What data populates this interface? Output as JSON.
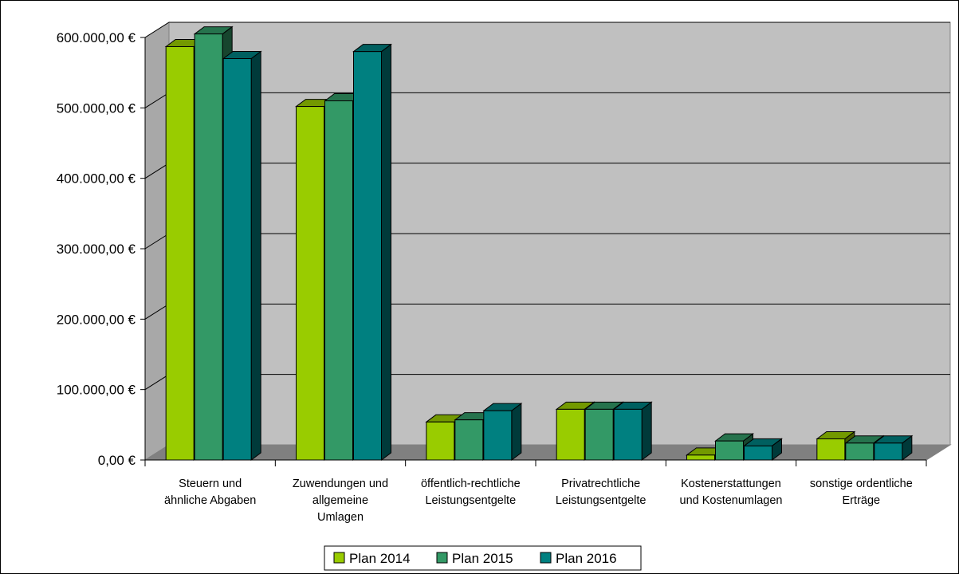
{
  "chart_data": {
    "type": "bar",
    "categories": [
      [
        "Steuern und",
        "ähnliche Abgaben"
      ],
      [
        "Zuwendungen und",
        "allgemeine",
        "Umlagen"
      ],
      [
        "öffentlich-rechtliche",
        "Leistungsentgelte"
      ],
      [
        "Privatrechtliche",
        "Leistungsentgelte"
      ],
      [
        "Kostenerstattungen",
        "und Kostenumlagen"
      ],
      [
        "sonstige ordentliche",
        "Erträge"
      ]
    ],
    "series": [
      {
        "name": "Plan 2014",
        "color": "#99cc00",
        "values": [
          587000,
          502000,
          54000,
          72000,
          7000,
          30000
        ]
      },
      {
        "name": "Plan 2015",
        "color": "#339966",
        "values": [
          605000,
          510000,
          57000,
          72000,
          27000,
          24000
        ]
      },
      {
        "name": "Plan 2016",
        "color": "#008080",
        "values": [
          570000,
          580000,
          70000,
          72000,
          20000,
          24000
        ]
      }
    ],
    "y_ticks": [
      "0,00 €",
      "100.000,00 €",
      "200.000,00 €",
      "300.000,00 €",
      "400.000,00 €",
      "500.000,00 €",
      "600.000,00 €"
    ],
    "ylim": [
      0,
      600000
    ],
    "grid": true,
    "legend_position": "bottom",
    "title": "",
    "xlabel": "",
    "ylabel": ""
  }
}
